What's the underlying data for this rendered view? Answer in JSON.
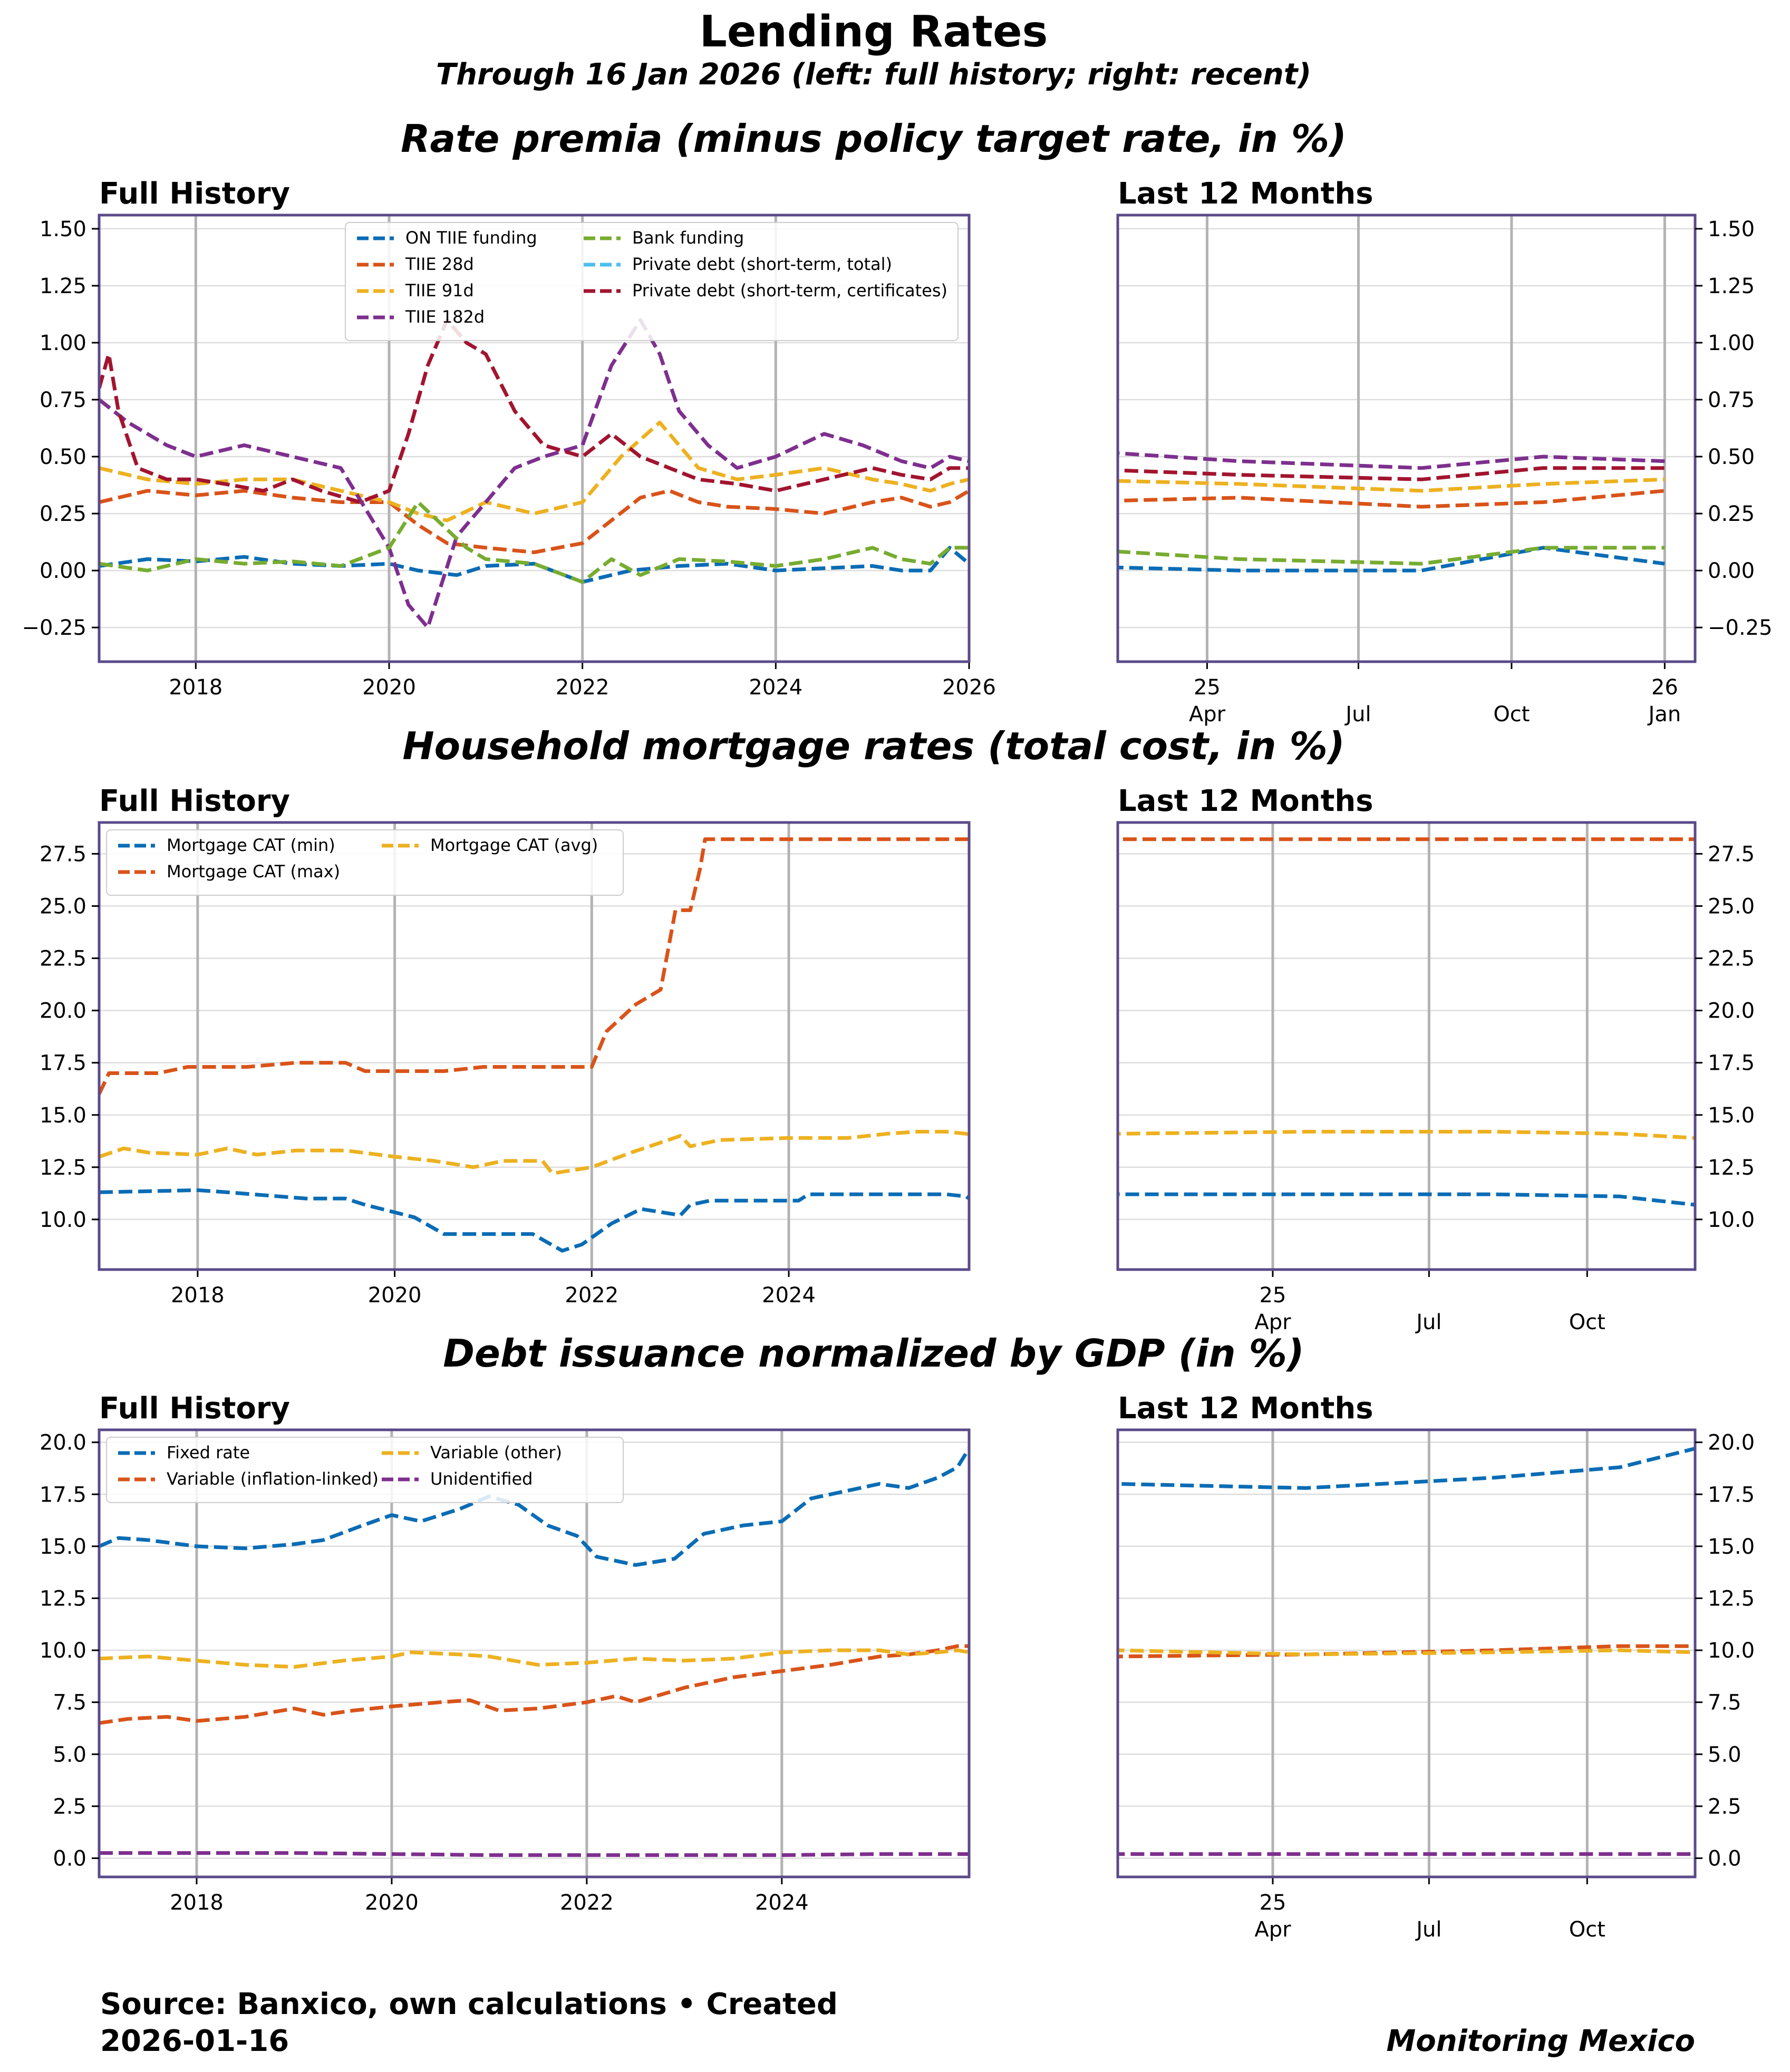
{
  "figure": {
    "title": "Lending Rates",
    "subtitle": "Through 16 Jan 2026 (left: full history; right: recent)",
    "footer_source_line1": "Source: Banxico, own calculations • Created",
    "footer_source_line2": "2026-01-16",
    "footer_brand": "Monitoring Mexico",
    "colors": {
      "frame": "#5a4a8a",
      "grid_vertical": "#b3b3b3",
      "grid_horizontal": "#dddddd",
      "series": [
        "#0a6cb5",
        "#d95319",
        "#edb120",
        "#7e2f8e",
        "#77ac30",
        "#4dbeee",
        "#a2142f"
      ]
    }
  },
  "chart_data": [
    {
      "id": "premia",
      "section_title": "Rate premia (minus policy target rate, in %)",
      "type": "line",
      "left_title": "Full History",
      "right_title": "Last 12 Months",
      "ylim": [
        -0.4,
        1.56
      ],
      "yticks": [
        -0.25,
        0.0,
        0.25,
        0.5,
        0.75,
        1.0,
        1.25,
        1.5
      ],
      "ytick_labels": [
        "−0.25",
        "0.00",
        "0.25",
        "0.50",
        "0.75",
        "1.00",
        "1.25",
        "1.50"
      ],
      "left_xlim": [
        2017.0,
        2026.0
      ],
      "left_xticks": [
        2018,
        2020,
        2022,
        2024,
        2026
      ],
      "left_xtick_labels": [
        "2018",
        "2020",
        "2022",
        "2024",
        "2026"
      ],
      "right_xlim": [
        2025.1,
        2026.05
      ],
      "right_xticks": [
        {
          "x": 2025.247,
          "l1": "25",
          "l2": "Apr"
        },
        {
          "x": 2025.496,
          "l1": "",
          "l2": "Jul"
        },
        {
          "x": 2025.748,
          "l1": "",
          "l2": "Oct"
        },
        {
          "x": 2026.0,
          "l1": "26",
          "l2": "Jan"
        }
      ],
      "legend": {
        "placement": "upper-center",
        "ncol": 2
      },
      "series": [
        {
          "name": "ON TIIE funding",
          "color": "#0a6cb5",
          "x": [
            2017.0,
            2017.5,
            2018.0,
            2018.5,
            2019.0,
            2019.5,
            2020.0,
            2020.3,
            2020.7,
            2021.0,
            2021.5,
            2022.0,
            2022.5,
            2023.0,
            2023.5,
            2024.0,
            2024.5,
            2025.0,
            2025.3,
            2025.6,
            2025.8,
            2026.0
          ],
          "y": [
            0.02,
            0.05,
            0.04,
            0.06,
            0.03,
            0.02,
            0.03,
            0.0,
            -0.02,
            0.02,
            0.03,
            -0.05,
            0.0,
            0.02,
            0.03,
            0.0,
            0.01,
            0.02,
            0.0,
            0.0,
            0.1,
            0.03
          ]
        },
        {
          "name": "TIIE 28d",
          "color": "#d95319",
          "x": [
            2017.0,
            2017.5,
            2018.0,
            2018.5,
            2019.0,
            2019.5,
            2020.0,
            2020.3,
            2020.6,
            2021.0,
            2021.5,
            2022.0,
            2022.3,
            2022.6,
            2022.9,
            2023.2,
            2023.5,
            2024.0,
            2024.5,
            2025.0,
            2025.3,
            2025.6,
            2025.8,
            2026.0
          ],
          "y": [
            0.3,
            0.35,
            0.33,
            0.35,
            0.32,
            0.3,
            0.3,
            0.2,
            0.12,
            0.1,
            0.08,
            0.12,
            0.22,
            0.32,
            0.35,
            0.3,
            0.28,
            0.27,
            0.25,
            0.3,
            0.32,
            0.28,
            0.3,
            0.35
          ]
        },
        {
          "name": "TIIE 91d",
          "color": "#edb120",
          "x": [
            2017.0,
            2017.5,
            2018.0,
            2018.5,
            2019.0,
            2019.5,
            2020.0,
            2020.3,
            2020.6,
            2021.0,
            2021.5,
            2022.0,
            2022.4,
            2022.8,
            2023.2,
            2023.6,
            2024.0,
            2024.5,
            2025.0,
            2025.3,
            2025.6,
            2025.8,
            2026.0
          ],
          "y": [
            0.45,
            0.4,
            0.38,
            0.4,
            0.4,
            0.35,
            0.3,
            0.25,
            0.22,
            0.3,
            0.25,
            0.3,
            0.5,
            0.65,
            0.45,
            0.4,
            0.42,
            0.45,
            0.4,
            0.38,
            0.35,
            0.38,
            0.4
          ]
        },
        {
          "name": "TIIE 182d",
          "color": "#7e2f8e",
          "x": [
            2017.0,
            2017.3,
            2017.7,
            2018.0,
            2018.5,
            2019.0,
            2019.5,
            2020.0,
            2020.2,
            2020.4,
            2020.7,
            2021.0,
            2021.3,
            2021.6,
            2022.0,
            2022.3,
            2022.6,
            2022.8,
            2023.0,
            2023.3,
            2023.6,
            2024.0,
            2024.5,
            2024.9,
            2025.3,
            2025.6,
            2025.8,
            2026.0
          ],
          "y": [
            0.75,
            0.65,
            0.55,
            0.5,
            0.55,
            0.5,
            0.45,
            0.1,
            -0.15,
            -0.25,
            0.15,
            0.3,
            0.45,
            0.5,
            0.55,
            0.9,
            1.1,
            0.95,
            0.7,
            0.55,
            0.45,
            0.5,
            0.6,
            0.55,
            0.48,
            0.45,
            0.5,
            0.48
          ]
        },
        {
          "name": "Bank funding",
          "color": "#77ac30",
          "x": [
            2017.0,
            2017.5,
            2018.0,
            2018.5,
            2019.0,
            2019.5,
            2020.0,
            2020.3,
            2020.5,
            2020.8,
            2021.0,
            2021.5,
            2022.0,
            2022.3,
            2022.6,
            2023.0,
            2023.5,
            2024.0,
            2024.5,
            2025.0,
            2025.3,
            2025.6,
            2025.8,
            2026.0
          ],
          "y": [
            0.03,
            0.0,
            0.05,
            0.03,
            0.04,
            0.02,
            0.1,
            0.3,
            0.22,
            0.1,
            0.05,
            0.03,
            -0.05,
            0.05,
            -0.02,
            0.05,
            0.04,
            0.02,
            0.05,
            0.1,
            0.05,
            0.03,
            0.1,
            0.1
          ]
        },
        {
          "name": "Private debt (short-term, total)",
          "color": "#4dbeee",
          "x": [],
          "y": []
        },
        {
          "name": "Private debt (short-term, certificates)",
          "color": "#a2142f",
          "x": [
            2017.0,
            2017.1,
            2017.2,
            2017.4,
            2017.7,
            2018.0,
            2018.3,
            2018.7,
            2019.0,
            2019.3,
            2019.7,
            2020.0,
            2020.2,
            2020.4,
            2020.6,
            2020.8,
            2021.0,
            2021.3,
            2021.6,
            2022.0,
            2022.3,
            2022.6,
            2022.9,
            2023.2,
            2023.6,
            2024.0,
            2024.5,
            2025.0,
            2025.3,
            2025.6,
            2025.8,
            2026.0
          ],
          "y": [
            0.8,
            0.95,
            0.7,
            0.45,
            0.4,
            0.4,
            0.38,
            0.35,
            0.4,
            0.35,
            0.3,
            0.35,
            0.6,
            0.9,
            1.1,
            1.0,
            0.95,
            0.7,
            0.55,
            0.5,
            0.6,
            0.5,
            0.45,
            0.4,
            0.38,
            0.35,
            0.4,
            0.45,
            0.42,
            0.4,
            0.45,
            0.45
          ]
        }
      ]
    },
    {
      "id": "mortgage",
      "section_title": "Household mortgage rates (total cost, in %)",
      "type": "line",
      "left_title": "Full History",
      "right_title": "Last 12 Months",
      "ylim": [
        7.6,
        29.0
      ],
      "yticks": [
        10.0,
        12.5,
        15.0,
        17.5,
        20.0,
        22.5,
        25.0,
        27.5
      ],
      "ytick_labels": [
        "10.0",
        "12.5",
        "15.0",
        "17.5",
        "20.0",
        "22.5",
        "25.0",
        "27.5"
      ],
      "left_xlim": [
        2017.0,
        2025.83
      ],
      "left_xticks": [
        2018,
        2020,
        2022,
        2024
      ],
      "left_xtick_labels": [
        "2018",
        "2020",
        "2022",
        "2024"
      ],
      "right_xlim": [
        2025.0,
        2025.92
      ],
      "right_xticks": [
        {
          "x": 2025.247,
          "l1": "25",
          "l2": "Apr"
        },
        {
          "x": 2025.496,
          "l1": "",
          "l2": "Jul"
        },
        {
          "x": 2025.748,
          "l1": "",
          "l2": "Oct"
        }
      ],
      "legend": {
        "placement": "upper-left",
        "ncol": 2
      },
      "series": [
        {
          "name": "Mortgage CAT (min)",
          "color": "#0a6cb5",
          "x": [
            2017.0,
            2018.0,
            2018.3,
            2019.1,
            2019.5,
            2019.7,
            2020.2,
            2020.5,
            2021.4,
            2021.7,
            2021.9,
            2022.2,
            2022.5,
            2022.9,
            2023.0,
            2023.2,
            2024.1,
            2024.2,
            2025.0,
            2025.3,
            2025.6,
            2025.8,
            2025.92
          ],
          "y": [
            11.3,
            11.4,
            11.3,
            11.0,
            11.0,
            10.7,
            10.1,
            9.3,
            9.3,
            8.5,
            8.8,
            9.8,
            10.5,
            10.2,
            10.7,
            10.9,
            10.9,
            11.2,
            11.2,
            11.2,
            11.2,
            11.1,
            10.7
          ]
        },
        {
          "name": "Mortgage CAT (max)",
          "color": "#d95319",
          "x": [
            2017.0,
            2017.1,
            2017.6,
            2017.9,
            2018.5,
            2019.0,
            2019.5,
            2019.7,
            2020.5,
            2020.9,
            2021.2,
            2022.0,
            2022.15,
            2022.45,
            2022.7,
            2022.85,
            2023.0,
            2023.1,
            2023.15,
            2023.25,
            2024.0,
            2025.0,
            2025.92
          ],
          "y": [
            16.0,
            17.0,
            17.0,
            17.3,
            17.3,
            17.5,
            17.5,
            17.1,
            17.1,
            17.3,
            17.3,
            17.3,
            19.0,
            20.3,
            21.0,
            24.8,
            24.8,
            26.8,
            28.2,
            28.2,
            28.2,
            28.2,
            28.2
          ]
        },
        {
          "name": "Mortgage CAT (avg)",
          "color": "#edb120",
          "x": [
            2017.0,
            2017.25,
            2017.5,
            2018.0,
            2018.3,
            2018.6,
            2019.0,
            2019.5,
            2020.0,
            2020.4,
            2020.8,
            2021.1,
            2021.5,
            2021.6,
            2022.0,
            2022.4,
            2022.9,
            2023.0,
            2023.3,
            2024.0,
            2024.6,
            2025.0,
            2025.3,
            2025.6,
            2025.8,
            2025.92
          ],
          "y": [
            13.0,
            13.4,
            13.2,
            13.1,
            13.4,
            13.1,
            13.3,
            13.3,
            13.0,
            12.8,
            12.5,
            12.8,
            12.8,
            12.2,
            12.5,
            13.2,
            14.0,
            13.5,
            13.8,
            13.9,
            13.9,
            14.1,
            14.2,
            14.2,
            14.1,
            13.9
          ]
        }
      ]
    },
    {
      "id": "debt",
      "section_title": "Debt issuance normalized by GDP (in %)",
      "type": "line",
      "left_title": "Full History",
      "right_title": "Last 12 Months",
      "ylim": [
        -0.9,
        20.6
      ],
      "yticks": [
        0.0,
        2.5,
        5.0,
        7.5,
        10.0,
        12.5,
        15.0,
        17.5,
        20.0
      ],
      "ytick_labels": [
        "0.0",
        "2.5",
        "5.0",
        "7.5",
        "10.0",
        "12.5",
        "15.0",
        "17.5",
        "20.0"
      ],
      "left_xlim": [
        2017.0,
        2025.92
      ],
      "left_xticks": [
        2018,
        2020,
        2022,
        2024
      ],
      "left_xtick_labels": [
        "2018",
        "2020",
        "2022",
        "2024"
      ],
      "right_xlim": [
        2025.0,
        2025.92
      ],
      "right_xticks": [
        {
          "x": 2025.247,
          "l1": "25",
          "l2": "Apr"
        },
        {
          "x": 2025.496,
          "l1": "",
          "l2": "Jul"
        },
        {
          "x": 2025.748,
          "l1": "",
          "l2": "Oct"
        }
      ],
      "legend": {
        "placement": "upper-left",
        "ncol": 2
      },
      "series": [
        {
          "name": "Fixed rate",
          "color": "#0a6cb5",
          "x": [
            2017.0,
            2017.2,
            2017.5,
            2018.0,
            2018.5,
            2019.0,
            2019.3,
            2019.7,
            2020.0,
            2020.3,
            2020.7,
            2021.0,
            2021.3,
            2021.6,
            2021.9,
            2022.1,
            2022.5,
            2022.9,
            2023.2,
            2023.6,
            2024.0,
            2024.3,
            2024.7,
            2025.0,
            2025.3,
            2025.6,
            2025.8,
            2025.92
          ],
          "y": [
            15.0,
            15.4,
            15.3,
            15.0,
            14.9,
            15.1,
            15.3,
            16.0,
            16.5,
            16.2,
            16.8,
            17.4,
            17.0,
            16.0,
            15.5,
            14.5,
            14.1,
            14.4,
            15.6,
            16.0,
            16.2,
            17.3,
            17.7,
            18.0,
            17.8,
            18.3,
            18.8,
            19.7
          ]
        },
        {
          "name": "Variable (inflation-linked)",
          "color": "#d95319",
          "x": [
            2017.0,
            2017.3,
            2017.7,
            2018.0,
            2018.5,
            2019.0,
            2019.3,
            2019.6,
            2020.0,
            2020.5,
            2020.8,
            2021.1,
            2021.5,
            2022.0,
            2022.3,
            2022.5,
            2023.0,
            2023.5,
            2024.0,
            2024.5,
            2025.0,
            2025.3,
            2025.6,
            2025.8,
            2025.92
          ],
          "y": [
            6.5,
            6.7,
            6.8,
            6.6,
            6.8,
            7.2,
            6.9,
            7.1,
            7.3,
            7.5,
            7.6,
            7.1,
            7.2,
            7.5,
            7.8,
            7.5,
            8.2,
            8.7,
            9.0,
            9.3,
            9.7,
            9.8,
            10.0,
            10.2,
            10.2
          ]
        },
        {
          "name": "Variable (other)",
          "color": "#edb120",
          "x": [
            2017.0,
            2017.5,
            2018.0,
            2018.5,
            2019.0,
            2019.5,
            2020.0,
            2020.2,
            2020.7,
            2021.0,
            2021.5,
            2022.0,
            2022.5,
            2023.0,
            2023.5,
            2024.0,
            2024.5,
            2025.0,
            2025.3,
            2025.6,
            2025.8,
            2025.92
          ],
          "y": [
            9.6,
            9.7,
            9.5,
            9.3,
            9.2,
            9.5,
            9.7,
            9.9,
            9.8,
            9.7,
            9.3,
            9.4,
            9.6,
            9.5,
            9.6,
            9.9,
            10.0,
            10.0,
            9.8,
            9.9,
            10.0,
            9.9
          ]
        },
        {
          "name": "Unidentified",
          "color": "#7e2f8e",
          "x": [
            2017.0,
            2018.0,
            2019.0,
            2020.0,
            2021.0,
            2022.0,
            2023.0,
            2024.0,
            2025.0,
            2025.92
          ],
          "y": [
            0.25,
            0.25,
            0.25,
            0.2,
            0.15,
            0.15,
            0.15,
            0.15,
            0.2,
            0.2
          ]
        }
      ]
    }
  ]
}
